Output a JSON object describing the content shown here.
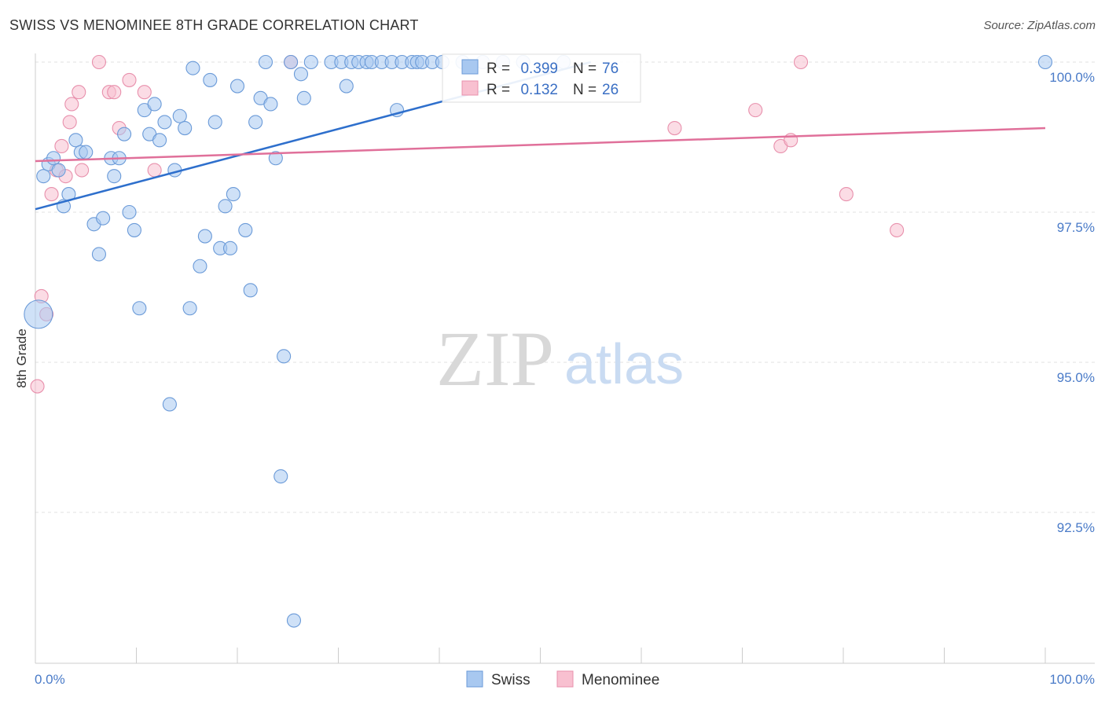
{
  "title": "SWISS VS MENOMINEE 8TH GRADE CORRELATION CHART",
  "source": "Source: ZipAtlas.com",
  "watermark": {
    "zip": "ZIP",
    "atlas": "atlas"
  },
  "chart_data": {
    "type": "scatter",
    "ylabel": "8th Grade",
    "xlabel": "",
    "xlim": [
      0,
      100
    ],
    "ylim": [
      90.2,
      100.4
    ],
    "x_tick_labels": {
      "left": "0.0%",
      "right": "100.0%"
    },
    "y_ticks": [
      {
        "value": 100.0,
        "label": "100.0%"
      },
      {
        "value": 97.5,
        "label": "97.5%"
      },
      {
        "value": 95.0,
        "label": "95.0%"
      },
      {
        "value": 92.5,
        "label": "92.5%"
      }
    ],
    "legend": {
      "r_label": "R =",
      "n_label": "N =",
      "entries": [
        {
          "name": "Swiss",
          "r": "0.399",
          "n": "76",
          "color": "#a8c8f0",
          "stroke": "#6a9ad8",
          "line": "#2e6fcc"
        },
        {
          "name": "Menominee",
          "r": "0.132",
          "n": "26",
          "color": "#f8c0d0",
          "stroke": "#e890ac",
          "line": "#e0709a"
        }
      ]
    },
    "series": [
      {
        "name": "Swiss",
        "trend": {
          "x": [
            0,
            55
          ],
          "y": [
            97.55,
            100.0
          ]
        },
        "points": [
          [
            0.3,
            95.8
          ],
          [
            0.8,
            98.1
          ],
          [
            1.3,
            98.3
          ],
          [
            1.8,
            98.4
          ],
          [
            2.3,
            98.2
          ],
          [
            2.8,
            97.6
          ],
          [
            3.3,
            97.8
          ],
          [
            4.0,
            98.7
          ],
          [
            4.5,
            98.5
          ],
          [
            5.0,
            98.5
          ],
          [
            5.8,
            97.3
          ],
          [
            6.3,
            96.8
          ],
          [
            6.7,
            97.4
          ],
          [
            7.5,
            98.4
          ],
          [
            7.8,
            98.1
          ],
          [
            8.3,
            98.4
          ],
          [
            8.8,
            98.8
          ],
          [
            9.3,
            97.5
          ],
          [
            9.8,
            97.2
          ],
          [
            10.3,
            95.9
          ],
          [
            10.8,
            99.2
          ],
          [
            11.3,
            98.8
          ],
          [
            11.8,
            99.3
          ],
          [
            12.3,
            98.7
          ],
          [
            12.8,
            99.0
          ],
          [
            13.3,
            94.3
          ],
          [
            13.8,
            98.2
          ],
          [
            14.3,
            99.1
          ],
          [
            14.8,
            98.9
          ],
          [
            15.3,
            95.9
          ],
          [
            15.6,
            99.9
          ],
          [
            16.3,
            96.6
          ],
          [
            16.8,
            97.1
          ],
          [
            17.3,
            99.7
          ],
          [
            17.8,
            99.0
          ],
          [
            18.3,
            96.9
          ],
          [
            18.8,
            97.6
          ],
          [
            19.3,
            96.9
          ],
          [
            19.6,
            97.8
          ],
          [
            20.0,
            99.6
          ],
          [
            20.8,
            97.2
          ],
          [
            21.3,
            96.2
          ],
          [
            21.8,
            99.0
          ],
          [
            22.3,
            99.4
          ],
          [
            22.8,
            100.0
          ],
          [
            23.3,
            99.3
          ],
          [
            23.8,
            98.4
          ],
          [
            24.3,
            93.1
          ],
          [
            24.6,
            95.1
          ],
          [
            25.3,
            100.0
          ],
          [
            25.6,
            90.7
          ],
          [
            26.3,
            99.8
          ],
          [
            26.6,
            99.4
          ],
          [
            27.3,
            100.0
          ],
          [
            29.3,
            100.0
          ],
          [
            30.3,
            100.0
          ],
          [
            30.8,
            99.6
          ],
          [
            31.3,
            100.0
          ],
          [
            32.0,
            100.0
          ],
          [
            32.8,
            100.0
          ],
          [
            33.3,
            100.0
          ],
          [
            34.3,
            100.0
          ],
          [
            35.3,
            100.0
          ],
          [
            35.8,
            99.2
          ],
          [
            36.3,
            100.0
          ],
          [
            37.3,
            100.0
          ],
          [
            37.8,
            100.0
          ],
          [
            38.3,
            100.0
          ],
          [
            39.3,
            100.0
          ],
          [
            40.3,
            100.0
          ],
          [
            42.3,
            100.0
          ],
          [
            44.3,
            100.0
          ],
          [
            46.3,
            100.0
          ],
          [
            48.3,
            100.0
          ],
          [
            52.3,
            100.0
          ],
          [
            100.0,
            100.0
          ]
        ]
      },
      {
        "name": "Menominee",
        "trend": {
          "x": [
            0,
            100
          ],
          "y": [
            98.35,
            98.9
          ]
        },
        "points": [
          [
            0.2,
            94.6
          ],
          [
            0.6,
            96.1
          ],
          [
            1.1,
            95.8
          ],
          [
            1.6,
            97.8
          ],
          [
            2.1,
            98.2
          ],
          [
            2.6,
            98.6
          ],
          [
            3.0,
            98.1
          ],
          [
            3.4,
            99.0
          ],
          [
            3.6,
            99.3
          ],
          [
            4.3,
            99.5
          ],
          [
            4.6,
            98.2
          ],
          [
            6.3,
            100.0
          ],
          [
            7.3,
            99.5
          ],
          [
            7.8,
            99.5
          ],
          [
            8.3,
            98.9
          ],
          [
            9.3,
            99.7
          ],
          [
            10.8,
            99.5
          ],
          [
            11.8,
            98.2
          ],
          [
            25.3,
            100.0
          ],
          [
            63.3,
            98.9
          ],
          [
            71.3,
            99.2
          ],
          [
            73.8,
            98.6
          ],
          [
            74.8,
            98.7
          ],
          [
            75.8,
            100.0
          ],
          [
            80.3,
            97.8
          ],
          [
            85.3,
            97.2
          ]
        ]
      }
    ]
  }
}
